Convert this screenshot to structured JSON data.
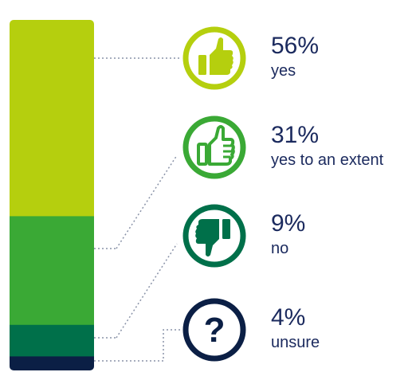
{
  "chart_data": {
    "type": "bar",
    "orientation": "stacked-vertical",
    "unit": "%",
    "categories": [
      "yes",
      "yes to an extent",
      "no",
      "unsure"
    ],
    "values": [
      56,
      31,
      9,
      4
    ],
    "labels": [
      "56%",
      "31%",
      "9%",
      "4%"
    ],
    "colors": [
      "#b5cf0e",
      "#3aa935",
      "#00704a",
      "#0b1f45"
    ],
    "icons": [
      "thumbs-up-filled-icon",
      "thumbs-up-outline-icon",
      "thumbs-down-filled-icon",
      "question-mark-icon"
    ]
  }
}
